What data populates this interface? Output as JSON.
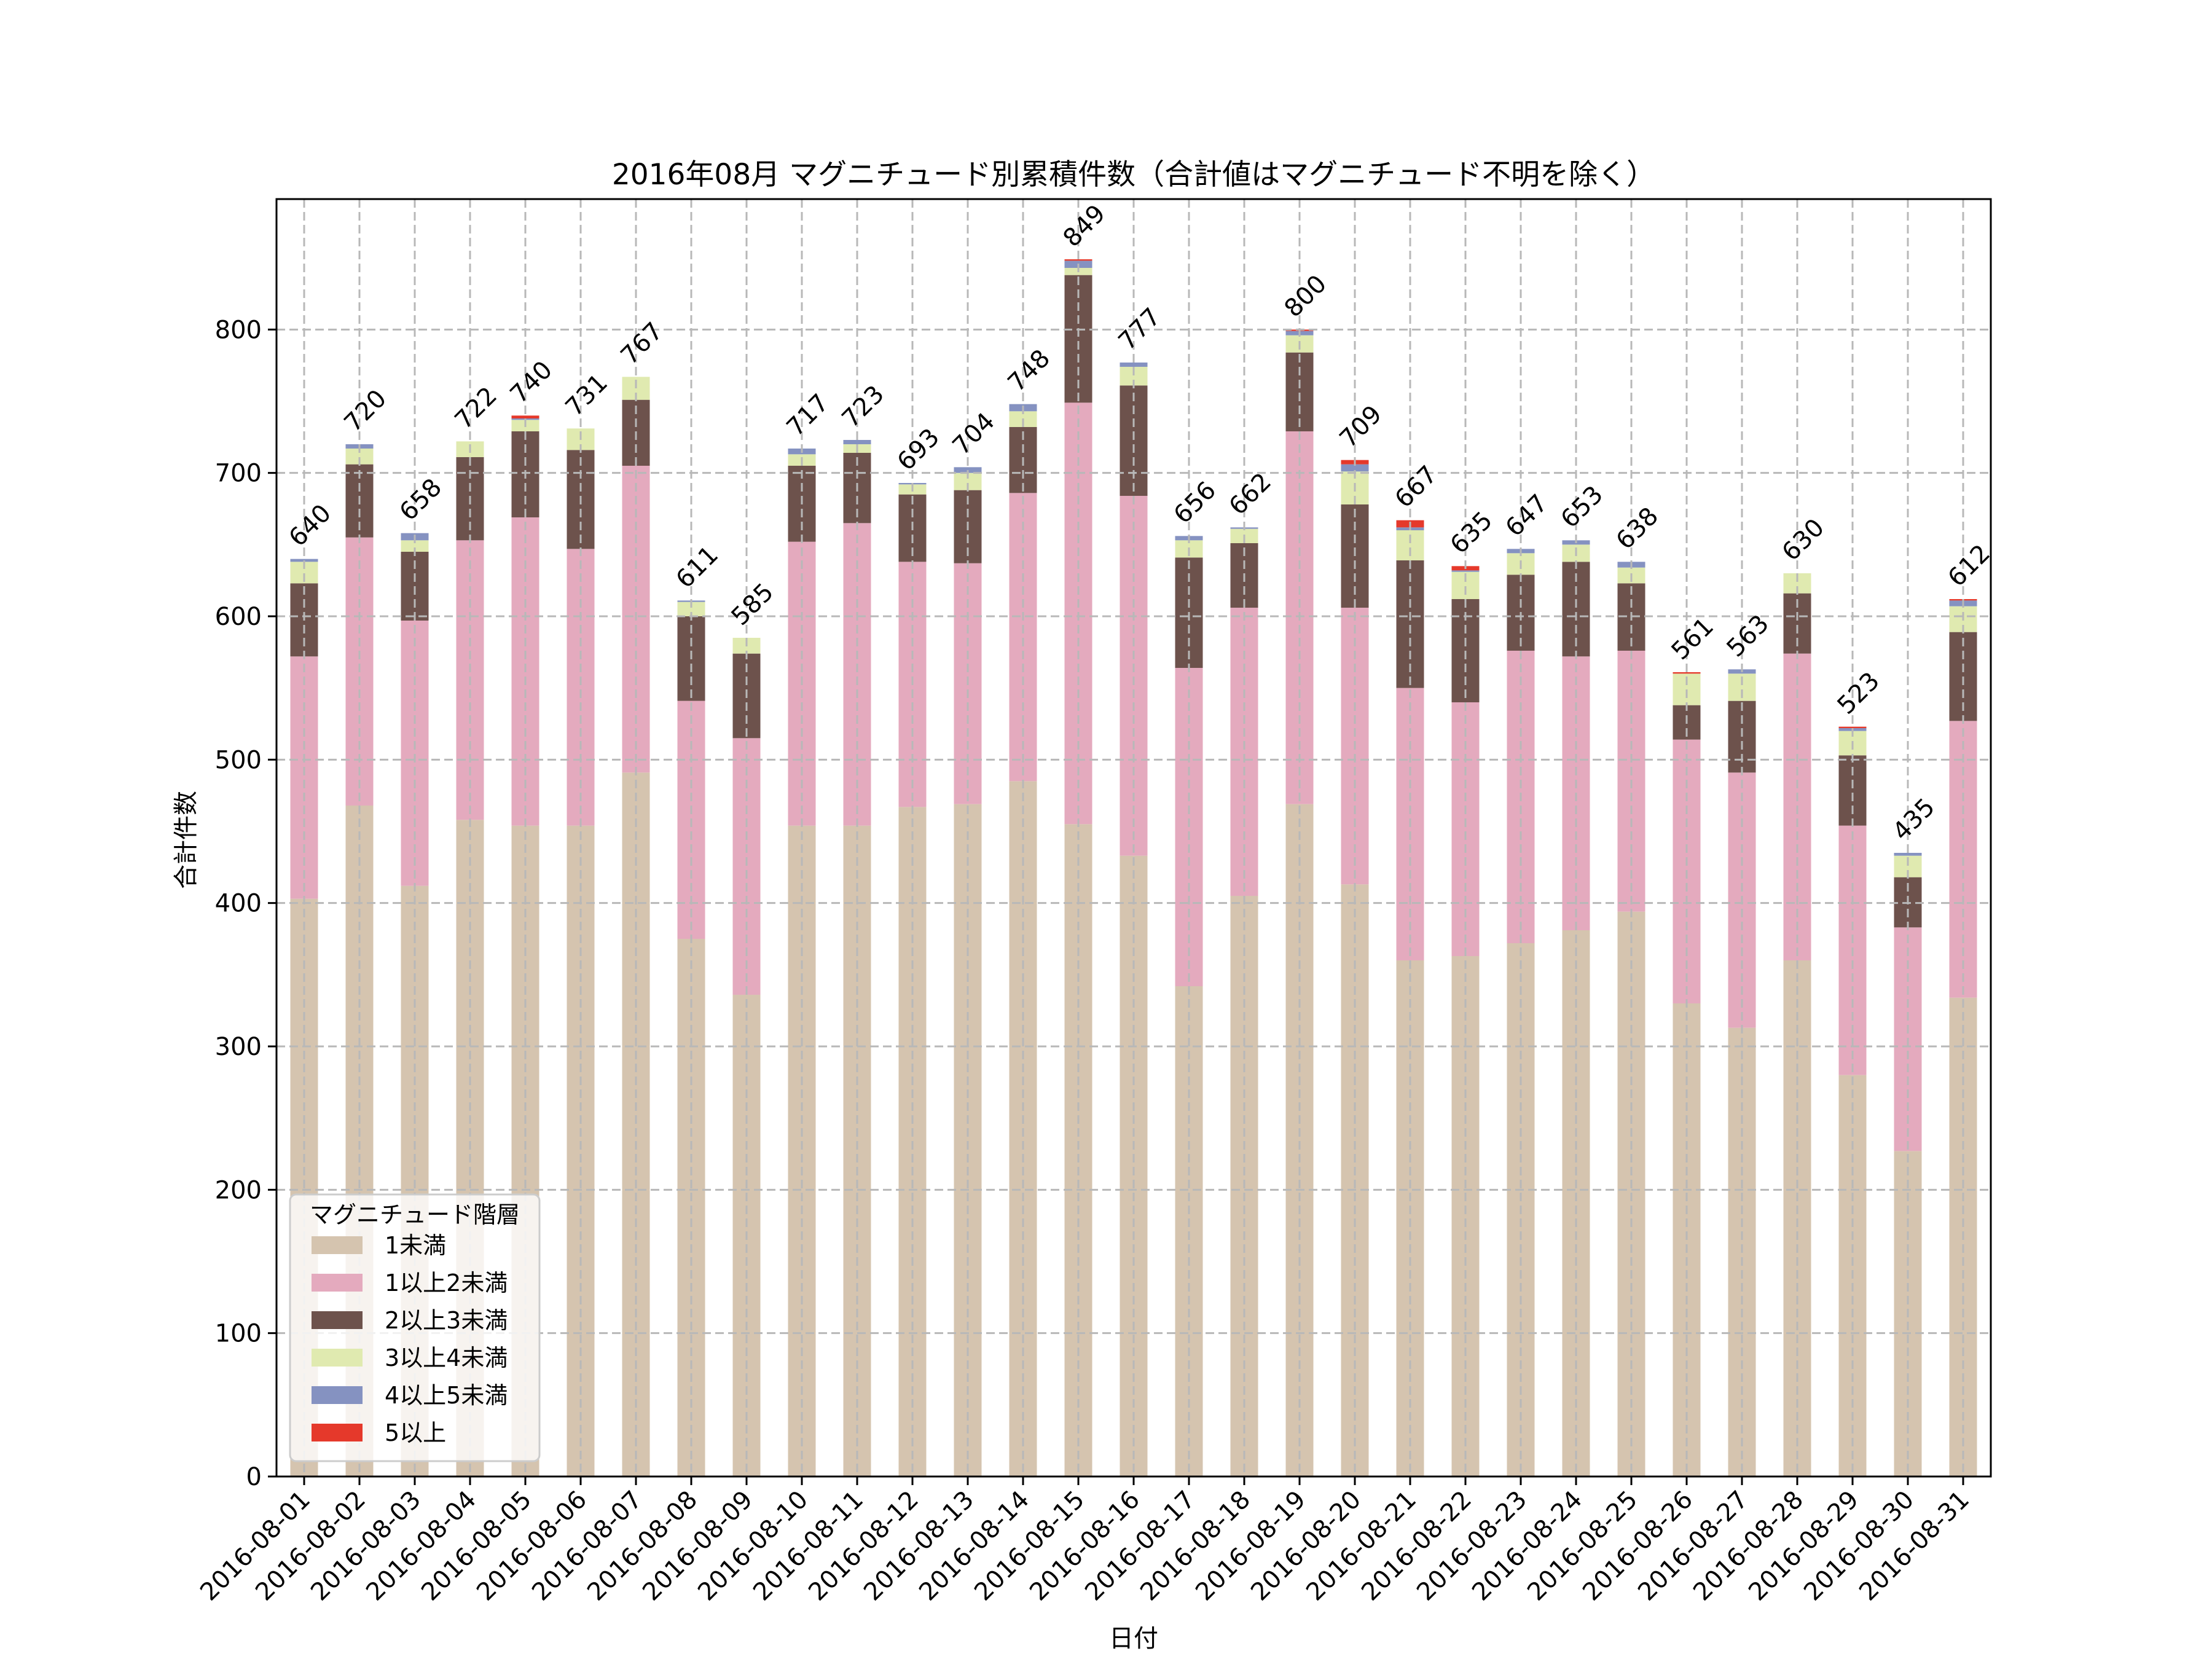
{
  "chart_data": {
    "type": "bar",
    "stacked": true,
    "title": "2016年08月 マグニチュード別累積件数（合計値はマグニチュード不明を除く）",
    "xlabel": "日付",
    "ylabel": "合計件数",
    "ylim": [
      0,
      891
    ],
    "yticks": [
      0,
      100,
      200,
      300,
      400,
      500,
      600,
      700,
      800
    ],
    "grid": true,
    "legend": {
      "title": "マグニチュード階層",
      "placement": "lower-left"
    },
    "categories": [
      "2016-08-01",
      "2016-08-02",
      "2016-08-03",
      "2016-08-04",
      "2016-08-05",
      "2016-08-06",
      "2016-08-07",
      "2016-08-08",
      "2016-08-09",
      "2016-08-10",
      "2016-08-11",
      "2016-08-12",
      "2016-08-13",
      "2016-08-14",
      "2016-08-15",
      "2016-08-16",
      "2016-08-17",
      "2016-08-18",
      "2016-08-19",
      "2016-08-20",
      "2016-08-21",
      "2016-08-22",
      "2016-08-23",
      "2016-08-24",
      "2016-08-25",
      "2016-08-26",
      "2016-08-27",
      "2016-08-28",
      "2016-08-29",
      "2016-08-30",
      "2016-08-31"
    ],
    "series": [
      {
        "name": "1未満",
        "color": "#d5c4af",
        "values": [
          403,
          468,
          412,
          458,
          454,
          454,
          491,
          375,
          336,
          454,
          454,
          467,
          469,
          485,
          455,
          433,
          342,
          405,
          469,
          413,
          360,
          363,
          372,
          381,
          394,
          330,
          313,
          360,
          280,
          227,
          334
        ]
      },
      {
        "name": "1以上2未満",
        "color": "#e4aabe",
        "values": [
          169,
          187,
          185,
          195,
          215,
          193,
          214,
          166,
          179,
          198,
          211,
          171,
          168,
          201,
          294,
          251,
          222,
          201,
          260,
          193,
          190,
          177,
          204,
          191,
          182,
          184,
          178,
          214,
          174,
          156,
          193
        ]
      },
      {
        "name": "2以上3未満",
        "color": "#6d524c",
        "values": [
          51,
          51,
          48,
          58,
          60,
          69,
          46,
          59,
          59,
          53,
          49,
          47,
          51,
          46,
          89,
          77,
          77,
          45,
          55,
          72,
          89,
          72,
          53,
          66,
          47,
          24,
          50,
          42,
          49,
          35,
          62
        ]
      },
      {
        "name": "3以上4未満",
        "color": "#e0eab0",
        "values": [
          15,
          11,
          8,
          11,
          8,
          15,
          16,
          10,
          11,
          8,
          6,
          7,
          12,
          11,
          5,
          13,
          12,
          10,
          12,
          23,
          21,
          19,
          15,
          12,
          11,
          22,
          19,
          14,
          17,
          15,
          18
        ]
      },
      {
        "name": "4以上5未満",
        "color": "#8592c1",
        "values": [
          2,
          3,
          5,
          0,
          1,
          0,
          0,
          1,
          0,
          4,
          3,
          1,
          4,
          5,
          5,
          3,
          3,
          1,
          3,
          5,
          2,
          1,
          3,
          3,
          4,
          0,
          3,
          0,
          2,
          2,
          4
        ]
      },
      {
        "name": "5以上",
        "color": "#e5392b",
        "values": [
          0,
          0,
          0,
          0,
          2,
          0,
          0,
          0,
          0,
          0,
          0,
          0,
          0,
          0,
          1,
          0,
          0,
          0,
          1,
          3,
          5,
          3,
          0,
          0,
          0,
          1,
          0,
          0,
          1,
          0,
          1
        ]
      }
    ],
    "totals": [
      "640",
      "720",
      "658",
      "722",
      "740",
      "731",
      "767",
      "611",
      "585",
      "717",
      "723",
      "693",
      "704",
      "748",
      "849",
      "777",
      "656",
      "662",
      "800",
      "709",
      "667",
      "635",
      "647",
      "653",
      "638",
      "561",
      "563",
      "630",
      "523",
      "435",
      "612"
    ]
  }
}
